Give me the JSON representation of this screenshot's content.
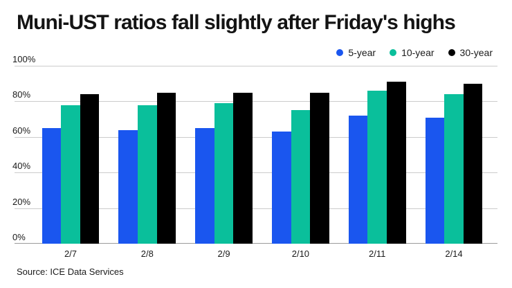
{
  "title": "Muni-UST ratios fall slightly after Friday's highs",
  "source": "Source: ICE Data Services",
  "colors": {
    "five_year": "#1a56ef",
    "ten_year": "#0abf9b",
    "thirty_year": "#000000",
    "gridline": "#cbcbcb",
    "axis_line": "#9a9a9a",
    "text": "#1a1a1a"
  },
  "chart_data": {
    "type": "bar",
    "title": "Muni-UST ratios fall slightly after Friday's highs",
    "categories": [
      "2/7",
      "2/8",
      "2/9",
      "2/10",
      "2/11",
      "2/14"
    ],
    "series": [
      {
        "name": "5-year",
        "color": "#1a56ef",
        "values": [
          65,
          64,
          65,
          63,
          72,
          71
        ]
      },
      {
        "name": "10-year",
        "color": "#0abf9b",
        "values": [
          78,
          78,
          79,
          75,
          86,
          84
        ]
      },
      {
        "name": "30-year",
        "color": "#000000",
        "values": [
          84,
          85,
          85,
          85,
          91,
          90
        ]
      }
    ],
    "xlabel": "",
    "ylabel": "",
    "ylim": [
      0,
      100
    ],
    "yticks": [
      "0%",
      "20%",
      "40%",
      "60%",
      "80%",
      "100%"
    ],
    "grid": true,
    "legend_position": "top-right"
  }
}
